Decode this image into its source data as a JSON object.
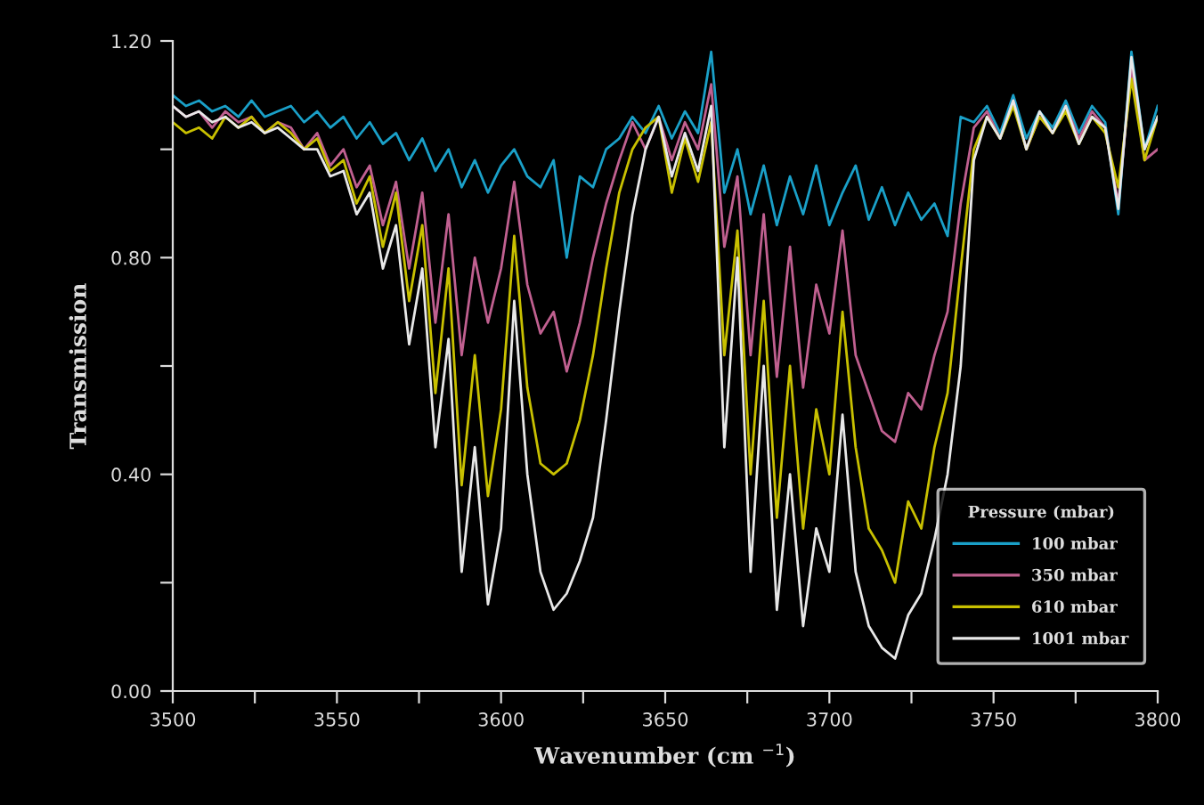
{
  "chart_data": {
    "type": "line",
    "xlabel": "Wavenumber (cm $^{−1}$)",
    "ylabel": "Transmission",
    "legend_title": "Pressure (mbar)",
    "legend": "bottom right",
    "grid": false,
    "x": [
      3500,
      3504,
      3508,
      3512,
      3516,
      3520,
      3524,
      3528,
      3532,
      3536,
      3540,
      3544,
      3548,
      3552,
      3556,
      3560,
      3564,
      3568,
      3572,
      3576,
      3580,
      3584,
      3588,
      3592,
      3596,
      3600,
      3604,
      3608,
      3612,
      3616,
      3620,
      3624,
      3628,
      3632,
      3636,
      3640,
      3644,
      3648,
      3652,
      3656,
      3660,
      3664,
      3668,
      3672,
      3676,
      3680,
      3684,
      3688,
      3692,
      3696,
      3700,
      3704,
      3708,
      3712,
      3716,
      3720,
      3724,
      3728,
      3732,
      3736,
      3740,
      3744,
      3748,
      3752,
      3756,
      3760,
      3764,
      3768,
      3772,
      3776,
      3780,
      3784,
      3788,
      3792,
      3796,
      3800
    ],
    "xlim": [
      3500,
      3800
    ],
    "xticks": [
      3500,
      {
        "value": 3525,
        "label": null
      },
      3550,
      {
        "value": 3575,
        "label": null
      },
      3600,
      {
        "value": 3625,
        "label": null
      },
      3650,
      {
        "value": 3675,
        "label": null
      },
      3700,
      {
        "value": 3725,
        "label": null
      },
      3750,
      {
        "value": 3775,
        "label": null
      },
      3800
    ],
    "ylim": [
      0,
      1.2
    ],
    "yticks": [
      {
        "value": 0,
        "label": "0.00"
      },
      {
        "value": 0.2,
        "label": null
      },
      {
        "value": 0.4,
        "label": "0.40"
      },
      {
        "value": 0.6,
        "label": null
      },
      {
        "value": 0.8,
        "label": "0.80"
      },
      {
        "value": 1.0,
        "label": null
      },
      {
        "value": 1.2,
        "label": "1.20"
      }
    ],
    "series": [
      {
        "name": "100 mbar",
        "color": "#1aa0c8",
        "values": [
          1.1,
          1.08,
          1.09,
          1.07,
          1.08,
          1.06,
          1.09,
          1.06,
          1.07,
          1.08,
          1.05,
          1.07,
          1.04,
          1.06,
          1.02,
          1.05,
          1.01,
          1.03,
          0.98,
          1.02,
          0.96,
          1.0,
          0.93,
          0.98,
          0.92,
          0.97,
          1.0,
          0.95,
          0.93,
          0.98,
          0.8,
          0.95,
          0.93,
          1.0,
          1.02,
          1.06,
          1.03,
          1.08,
          1.02,
          1.07,
          1.03,
          1.18,
          0.92,
          1.0,
          0.88,
          0.97,
          0.86,
          0.95,
          0.88,
          0.97,
          0.86,
          0.92,
          0.97,
          0.87,
          0.93,
          0.86,
          0.92,
          0.87,
          0.9,
          0.84,
          1.06,
          1.05,
          1.08,
          1.03,
          1.1,
          1.02,
          1.07,
          1.04,
          1.09,
          1.03,
          1.08,
          1.05,
          0.88,
          1.18,
          1.0,
          1.08
        ]
      },
      {
        "name": "350 mbar",
        "color": "#c06090",
        "values": [
          1.08,
          1.06,
          1.07,
          1.04,
          1.07,
          1.05,
          1.06,
          1.03,
          1.05,
          1.04,
          1.0,
          1.03,
          0.97,
          1.0,
          0.93,
          0.97,
          0.86,
          0.94,
          0.78,
          0.92,
          0.68,
          0.88,
          0.62,
          0.8,
          0.68,
          0.78,
          0.94,
          0.75,
          0.66,
          0.7,
          0.59,
          0.68,
          0.8,
          0.9,
          0.98,
          1.05,
          1.0,
          1.06,
          0.98,
          1.05,
          1.0,
          1.12,
          0.82,
          0.95,
          0.62,
          0.88,
          0.58,
          0.82,
          0.56,
          0.75,
          0.66,
          0.85,
          0.62,
          0.55,
          0.48,
          0.46,
          0.55,
          0.52,
          0.62,
          0.7,
          0.9,
          1.04,
          1.07,
          1.02,
          1.09,
          1.0,
          1.06,
          1.03,
          1.08,
          1.02,
          1.07,
          1.04,
          0.9,
          1.15,
          0.98,
          1.0
        ]
      },
      {
        "name": "610 mbar",
        "color": "#c8c000",
        "values": [
          1.05,
          1.03,
          1.04,
          1.02,
          1.06,
          1.04,
          1.06,
          1.03,
          1.05,
          1.03,
          1.0,
          1.02,
          0.96,
          0.98,
          0.9,
          0.95,
          0.82,
          0.92,
          0.72,
          0.86,
          0.55,
          0.78,
          0.38,
          0.62,
          0.36,
          0.52,
          0.84,
          0.56,
          0.42,
          0.4,
          0.42,
          0.5,
          0.62,
          0.78,
          0.92,
          1.0,
          1.04,
          1.06,
          0.92,
          1.02,
          0.94,
          1.05,
          0.62,
          0.85,
          0.4,
          0.72,
          0.32,
          0.6,
          0.3,
          0.52,
          0.4,
          0.7,
          0.45,
          0.3,
          0.26,
          0.2,
          0.35,
          0.3,
          0.45,
          0.55,
          0.78,
          1.0,
          1.06,
          1.02,
          1.08,
          1.0,
          1.06,
          1.03,
          1.07,
          1.01,
          1.06,
          1.03,
          0.93,
          1.13,
          0.98,
          1.06
        ]
      },
      {
        "name": "1001 mbar",
        "color": "#e8e8e8",
        "values": [
          1.08,
          1.06,
          1.07,
          1.05,
          1.06,
          1.04,
          1.05,
          1.03,
          1.04,
          1.02,
          1.0,
          1.0,
          0.95,
          0.96,
          0.88,
          0.92,
          0.78,
          0.86,
          0.64,
          0.78,
          0.45,
          0.65,
          0.22,
          0.45,
          0.16,
          0.3,
          0.72,
          0.4,
          0.22,
          0.15,
          0.18,
          0.24,
          0.32,
          0.5,
          0.7,
          0.88,
          1.0,
          1.06,
          0.95,
          1.03,
          0.96,
          1.08,
          0.45,
          0.8,
          0.22,
          0.6,
          0.15,
          0.4,
          0.12,
          0.3,
          0.22,
          0.51,
          0.22,
          0.12,
          0.08,
          0.06,
          0.14,
          0.18,
          0.28,
          0.4,
          0.6,
          0.98,
          1.06,
          1.02,
          1.09,
          1.0,
          1.07,
          1.03,
          1.08,
          1.01,
          1.06,
          1.04,
          0.89,
          1.17,
          1.0,
          1.06
        ]
      }
    ]
  }
}
